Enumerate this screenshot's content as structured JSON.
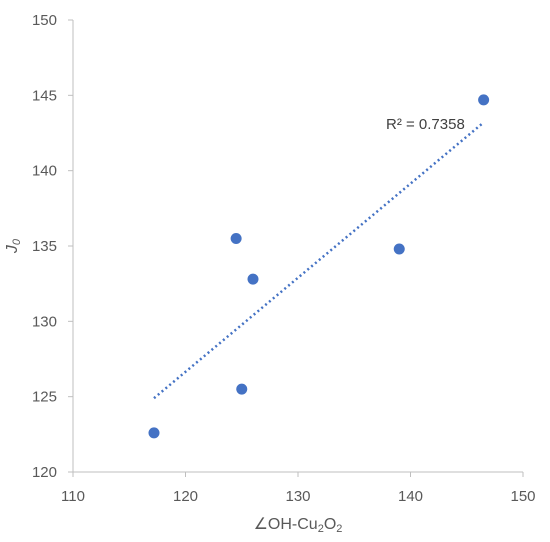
{
  "chart_data": {
    "type": "scatter",
    "title": "",
    "xlabel_parts": [
      {
        "text": "∠OH-Cu",
        "sub": false
      },
      {
        "text": "2",
        "sub": true
      },
      {
        "text": "O",
        "sub": false
      },
      {
        "text": "2",
        "sub": true
      }
    ],
    "ylabel_parts": [
      {
        "text": "J",
        "sub": false
      },
      {
        "text": "0",
        "sub": true
      }
    ],
    "xlim": [
      110,
      150
    ],
    "ylim": [
      120,
      150
    ],
    "xticks": [
      110,
      120,
      130,
      140,
      150
    ],
    "yticks": [
      120,
      125,
      130,
      135,
      140,
      145,
      150
    ],
    "grid": false,
    "series": [
      {
        "x": [
          117.2,
          124.5,
          126.0,
          125.0,
          139.0,
          146.5
        ],
        "y": [
          122.6,
          135.5,
          132.8,
          125.5,
          134.8,
          144.7
        ]
      }
    ],
    "trendline": {
      "style": "dotted",
      "x": [
        117.2,
        146.5
      ],
      "y": [
        124.9,
        143.2
      ]
    },
    "annotation": "R² = 0.7358",
    "colors": {
      "marker": "#4472C4",
      "trendline": "#4472C4",
      "axis": "#BFBFBF",
      "text": "#595959"
    }
  }
}
